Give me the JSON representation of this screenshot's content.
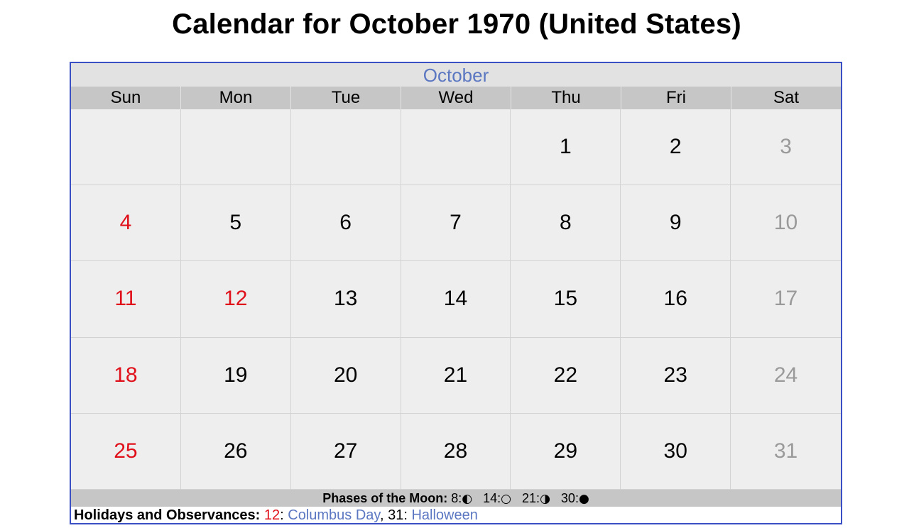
{
  "title": "Calendar for October 1970 (United States)",
  "month": "October",
  "weekdays": [
    "Sun",
    "Mon",
    "Tue",
    "Wed",
    "Thu",
    "Fri",
    "Sat"
  ],
  "weeks": [
    [
      "",
      "",
      "",
      "",
      "1",
      "2",
      "3"
    ],
    [
      "4",
      "5",
      "6",
      "7",
      "8",
      "9",
      "10"
    ],
    [
      "11",
      "12",
      "13",
      "14",
      "15",
      "16",
      "17"
    ],
    [
      "18",
      "19",
      "20",
      "21",
      "22",
      "23",
      "24"
    ],
    [
      "25",
      "26",
      "27",
      "28",
      "29",
      "30",
      "31"
    ]
  ],
  "holiday_days": [
    "12"
  ],
  "colors": {
    "holiday_red": "#e0101a",
    "saturday_gray": "#9a9a9a",
    "link_blue": "#5b77c2",
    "border_blue": "#3b4fc4"
  },
  "moon_phases": {
    "label": "Phases of the Moon:",
    "entries": [
      {
        "day": "8",
        "icon": "first-quarter-moon-icon",
        "glyph": "◐"
      },
      {
        "day": "14",
        "icon": "full-moon-icon",
        "glyph": "○"
      },
      {
        "day": "21",
        "icon": "last-quarter-moon-icon",
        "glyph": "◑"
      },
      {
        "day": "30",
        "icon": "new-moon-icon",
        "glyph": "●"
      }
    ]
  },
  "holidays": {
    "label": "Holidays and Observances:",
    "items": [
      {
        "day": "12",
        "name": "Columbus Day",
        "day_red": true
      },
      {
        "day": "31",
        "name": "Halloween",
        "day_red": false
      }
    ]
  }
}
